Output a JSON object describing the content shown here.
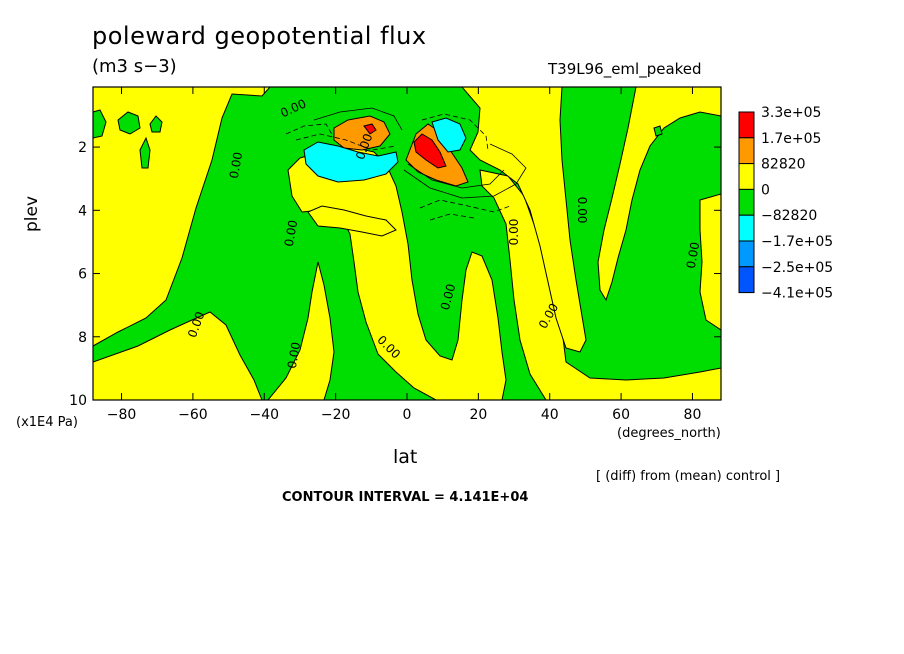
{
  "chart_data": {
    "type": "heatmap",
    "title": "poleward geopotential flux",
    "units_label": "(m3 s−3)",
    "run_label": "T39L96_eml_peaked",
    "xlabel": "lat",
    "xunits": "(degrees_north)",
    "ylabel": "plev",
    "yunits": "(x1E4 Pa)",
    "xlim": [
      -88,
      88
    ],
    "ylim": [
      10,
      0.1
    ],
    "x_ticks": [
      -80,
      -60,
      -40,
      -20,
      0,
      20,
      40,
      60,
      80
    ],
    "y_ticks": [
      2,
      4,
      6,
      8,
      10
    ],
    "y_inverted": true,
    "colorbar": {
      "placement": "right",
      "labels": [
        "3.3e+05",
        "1.7e+05",
        "82820",
        "0",
        "−82820",
        "−1.7e+05",
        "−2.5e+05",
        "−4.1e+05"
      ],
      "colors": [
        "#ff0000",
        "#ff9900",
        "#ffff00",
        "#00dd00",
        "#00ffff",
        "#0099ff",
        "#0055ff"
      ]
    },
    "contour_labels": [
      "0.00",
      "0.00",
      "0.00",
      "0.00",
      "0.00",
      "0.00",
      "0.00",
      "0.00",
      "0.00",
      "0.00",
      "0.00",
      "0.00"
    ],
    "features": [
      {
        "kind": "positive_max",
        "lat": 7,
        "plev": 2.1,
        "value": 330000
      },
      {
        "kind": "positive",
        "lat": -11,
        "plev": 1.5,
        "value": 170000
      },
      {
        "kind": "negative",
        "lat": -17,
        "plev": 2.5,
        "value": -170000
      },
      {
        "kind": "negative",
        "lat": 12,
        "plev": 1.8,
        "value": -170000
      }
    ],
    "diff_note": "[ (diff) from (mean) control ]",
    "contour_interval": "CONTOUR INTERVAL = 4.141E+04"
  }
}
